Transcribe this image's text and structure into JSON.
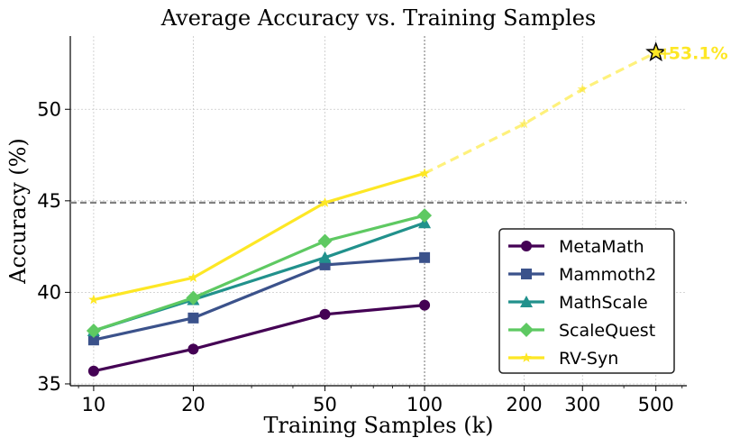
{
  "chart_data": {
    "type": "line",
    "title": "Average Accuracy vs. Training Samples",
    "xlabel": "Training Samples (k)",
    "ylabel": "Accuracy (%)",
    "xscale": "log",
    "xlim": [
      8.5,
      620
    ],
    "ylim": [
      34.9,
      54
    ],
    "xticks": [
      10,
      20,
      50,
      100,
      200,
      300,
      500
    ],
    "xtick_labels": [
      "10",
      "20",
      "50",
      "100",
      "200",
      "300",
      "500"
    ],
    "yticks": [
      35,
      40,
      45,
      50
    ],
    "ytick_labels": [
      "35",
      "40",
      "45",
      "50"
    ],
    "grid": true,
    "reference_lines": {
      "horizontal_y": 44.9,
      "vertical_x": 100
    },
    "legend_position": "lower-right",
    "series": [
      {
        "name": "MetaMath",
        "color": "#440154",
        "marker": "circle",
        "x": [
          10,
          20,
          50,
          100
        ],
        "values": [
          35.7,
          36.9,
          38.8,
          39.3
        ]
      },
      {
        "name": "Mammoth2",
        "color": "#3b528b",
        "marker": "square",
        "x": [
          10,
          20,
          50,
          100
        ],
        "values": [
          37.4,
          38.6,
          41.5,
          41.9
        ]
      },
      {
        "name": "MathScale",
        "color": "#21918c",
        "marker": "triangle",
        "x": [
          10,
          20,
          50,
          100
        ],
        "values": [
          37.9,
          39.6,
          41.9,
          43.8
        ]
      },
      {
        "name": "ScaleQuest",
        "color": "#5ec962",
        "marker": "diamond",
        "x": [
          10,
          20,
          50,
          100
        ],
        "values": [
          37.9,
          39.7,
          42.8,
          44.2
        ]
      },
      {
        "name": "RV-Syn",
        "color": "#fde725",
        "marker": "star",
        "x": [
          10,
          20,
          50,
          100
        ],
        "values": [
          39.6,
          40.8,
          44.9,
          46.5
        ],
        "extrapolation": {
          "x": [
            100,
            200,
            300,
            500
          ],
          "values": [
            46.5,
            49.2,
            51.1,
            53.1
          ]
        }
      }
    ],
    "annotation": {
      "text": "53.1%",
      "x": 500,
      "y": 53.1
    }
  }
}
